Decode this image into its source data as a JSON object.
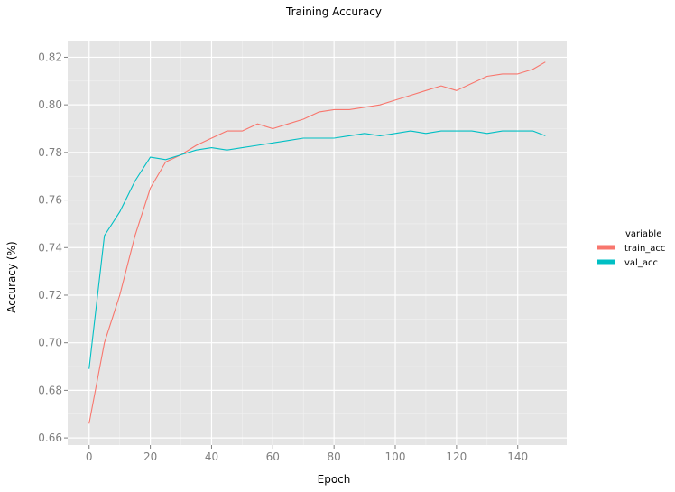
{
  "chart_data": {
    "type": "line",
    "title": "Training Accuracy",
    "xlabel": "Epoch",
    "ylabel": "Accuracy (%)",
    "xlim": [
      -7,
      156
    ],
    "ylim": [
      0.657,
      0.827
    ],
    "x_ticks": [
      0,
      20,
      40,
      60,
      80,
      100,
      120,
      140
    ],
    "y_ticks": [
      0.66,
      0.68,
      0.7,
      0.72,
      0.74,
      0.76,
      0.78,
      0.8,
      0.82
    ],
    "grid": true,
    "background": "#e5e5e5",
    "legend": {
      "title": "variable",
      "position": "right"
    },
    "series": [
      {
        "name": "train_acc",
        "color": "#f8766d",
        "x": [
          0,
          5,
          10,
          15,
          20,
          25,
          30,
          35,
          40,
          45,
          50,
          55,
          60,
          65,
          70,
          75,
          80,
          85,
          90,
          95,
          100,
          105,
          110,
          115,
          120,
          125,
          130,
          135,
          140,
          145,
          149
        ],
        "values": [
          0.666,
          0.7,
          0.72,
          0.745,
          0.765,
          0.776,
          0.779,
          0.783,
          0.786,
          0.789,
          0.789,
          0.792,
          0.79,
          0.792,
          0.794,
          0.797,
          0.798,
          0.798,
          0.799,
          0.8,
          0.802,
          0.804,
          0.806,
          0.808,
          0.806,
          0.809,
          0.812,
          0.813,
          0.813,
          0.815,
          0.818
        ]
      },
      {
        "name": "val_acc",
        "color": "#00bfc4",
        "x": [
          0,
          5,
          10,
          15,
          20,
          25,
          30,
          35,
          40,
          45,
          50,
          55,
          60,
          65,
          70,
          75,
          80,
          85,
          90,
          95,
          100,
          105,
          110,
          115,
          120,
          125,
          130,
          135,
          140,
          145,
          149
        ],
        "values": [
          0.689,
          0.745,
          0.755,
          0.768,
          0.778,
          0.777,
          0.779,
          0.781,
          0.782,
          0.781,
          0.782,
          0.783,
          0.784,
          0.785,
          0.786,
          0.786,
          0.786,
          0.787,
          0.788,
          0.787,
          0.788,
          0.789,
          0.788,
          0.789,
          0.789,
          0.789,
          0.788,
          0.789,
          0.789,
          0.789,
          0.787
        ]
      }
    ]
  }
}
